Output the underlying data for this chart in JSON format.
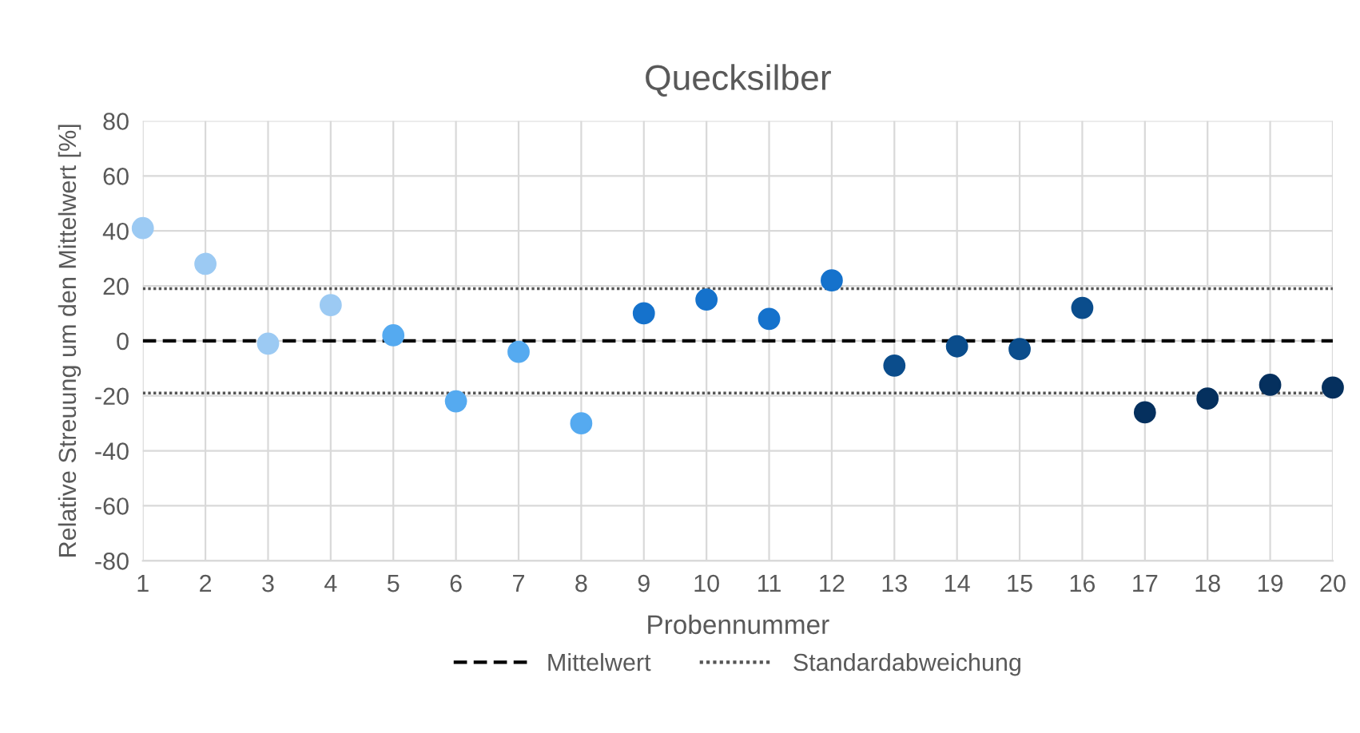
{
  "chart_data": {
    "type": "scatter",
    "title": "Quecksilber",
    "xlabel": "Probennummer",
    "ylabel": "Relative Streuung um den Mittelwert [%]",
    "x": [
      1,
      2,
      3,
      4,
      5,
      6,
      7,
      8,
      9,
      10,
      11,
      12,
      13,
      14,
      15,
      16,
      17,
      18,
      19,
      20
    ],
    "values": [
      41,
      28,
      -1,
      13,
      2,
      -22,
      -4,
      -30,
      10,
      15,
      8,
      22,
      -9,
      -2,
      -3,
      12,
      -26,
      -21,
      -16,
      -17
    ],
    "colors": [
      "#9ccaf3",
      "#9ccaf3",
      "#9ccaf3",
      "#9ccaf3",
      "#55aaf0",
      "#55aaf0",
      "#55aaf0",
      "#55aaf0",
      "#1572cc",
      "#1572cc",
      "#1572cc",
      "#1572cc",
      "#0b4d8c",
      "#0b4d8c",
      "#0b4d8c",
      "#0b4d8c",
      "#05305e",
      "#05305e",
      "#05305e",
      "#05305e"
    ],
    "marker": "circle",
    "xlim": [
      1,
      20
    ],
    "xticks": [
      1,
      2,
      3,
      4,
      5,
      6,
      7,
      8,
      9,
      10,
      11,
      12,
      13,
      14,
      15,
      16,
      17,
      18,
      19,
      20
    ],
    "ylim": [
      -80,
      80
    ],
    "yticks": [
      -80,
      -60,
      -40,
      -20,
      0,
      20,
      40,
      60,
      80
    ],
    "grid": true,
    "ref_lines": [
      {
        "axis": "y",
        "value": 0,
        "label": "Mittelwert",
        "line_style": "dashed",
        "color": "#000000"
      },
      {
        "axis": "y",
        "value": 19,
        "label": "Standardabweichung",
        "line_style": "dotted",
        "color": "#555555"
      },
      {
        "axis": "y",
        "value": -19,
        "label": null,
        "line_style": "dotted",
        "color": "#555555"
      }
    ],
    "legend": "bottom"
  }
}
